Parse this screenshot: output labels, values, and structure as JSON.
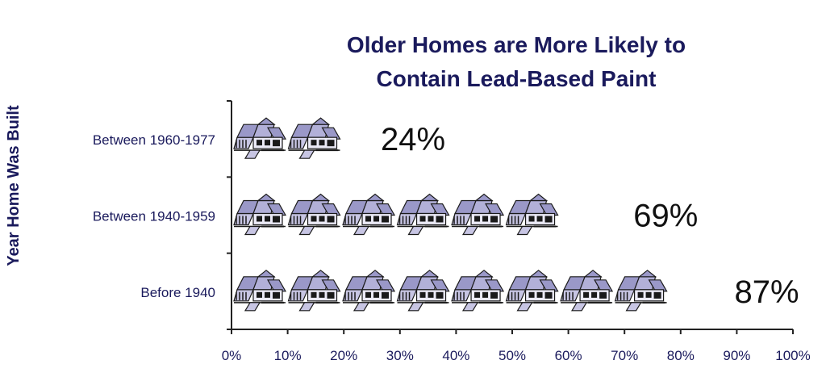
{
  "chart_data": {
    "type": "bar",
    "title_line1": "Older Homes are More Likely to",
    "title_line2": "Contain Lead-Based Paint",
    "ylabel": "Year Home Was Built",
    "xlabel": "",
    "categories": [
      "Between 1960-1977",
      "Between 1940-1959",
      "Before 1940"
    ],
    "values": [
      24,
      69,
      87
    ],
    "value_labels": [
      "24%",
      "69%",
      "87%"
    ],
    "xlim": [
      0,
      100
    ],
    "x_ticks": [
      0,
      10,
      20,
      30,
      40,
      50,
      60,
      70,
      80,
      90,
      100
    ],
    "x_tick_labels": [
      "0%",
      "10%",
      "20%",
      "30%",
      "40%",
      "50%",
      "60%",
      "70%",
      "80%",
      "90%",
      "100%"
    ],
    "grid": false,
    "mark_style": "house-pictogram",
    "colors": {
      "roof": "#9a98c8",
      "wall": "#c7c5e3",
      "outline": "#1a1a1a",
      "title": "#1a1a5c"
    }
  }
}
